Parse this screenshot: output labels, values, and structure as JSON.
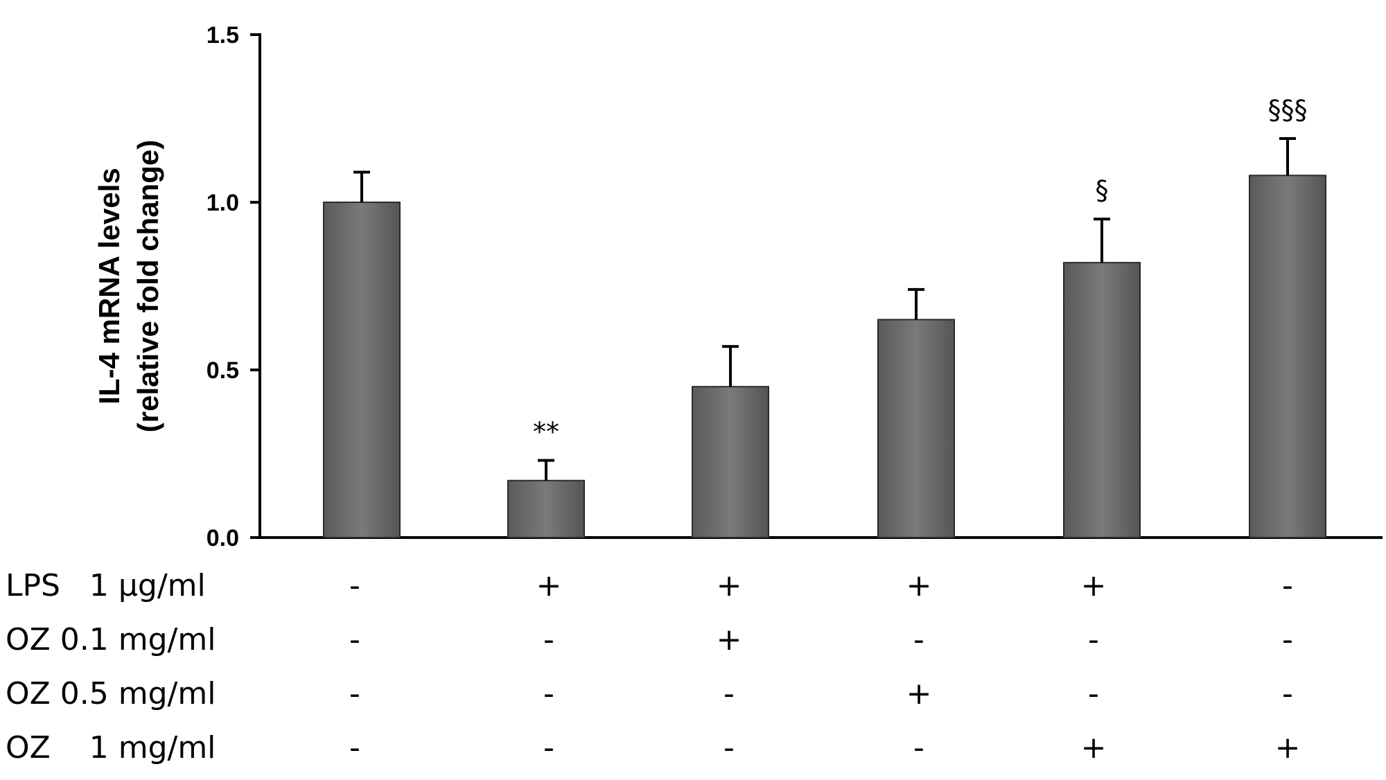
{
  "chart_data": {
    "type": "bar",
    "title": "",
    "ylabel": "IL-4 mRNA levels",
    "ylabel_sub": "(relative fold change)",
    "xlabel": "",
    "ylim": [
      0,
      1.5
    ],
    "yticks": [
      "0.0",
      "0.5",
      "1.0",
      "1.5"
    ],
    "ytick_values": [
      0,
      0.5,
      1.0,
      1.5
    ],
    "grid": false,
    "bar_color": "#6b6b6b",
    "values": [
      1.0,
      0.17,
      0.45,
      0.65,
      0.82,
      1.08
    ],
    "errors": [
      0.09,
      0.06,
      0.12,
      0.09,
      0.13,
      0.11
    ],
    "annotations": [
      "",
      "**",
      "",
      "",
      "§",
      "§§§"
    ],
    "treatment_rows": [
      {
        "label": "LPS   1 µg/ml",
        "marks": [
          "-",
          "+",
          "+",
          "+",
          "+",
          "-"
        ]
      },
      {
        "label": "OZ 0.1 mg/ml",
        "marks": [
          "-",
          "-",
          "+",
          "-",
          "-",
          "-"
        ]
      },
      {
        "label": "OZ 0.5 mg/ml",
        "marks": [
          "-",
          "-",
          "-",
          "+",
          "-",
          "-"
        ]
      },
      {
        "label": "OZ    1 mg/ml",
        "marks": [
          "-",
          "-",
          "-",
          "-",
          "+",
          "+"
        ]
      }
    ]
  }
}
